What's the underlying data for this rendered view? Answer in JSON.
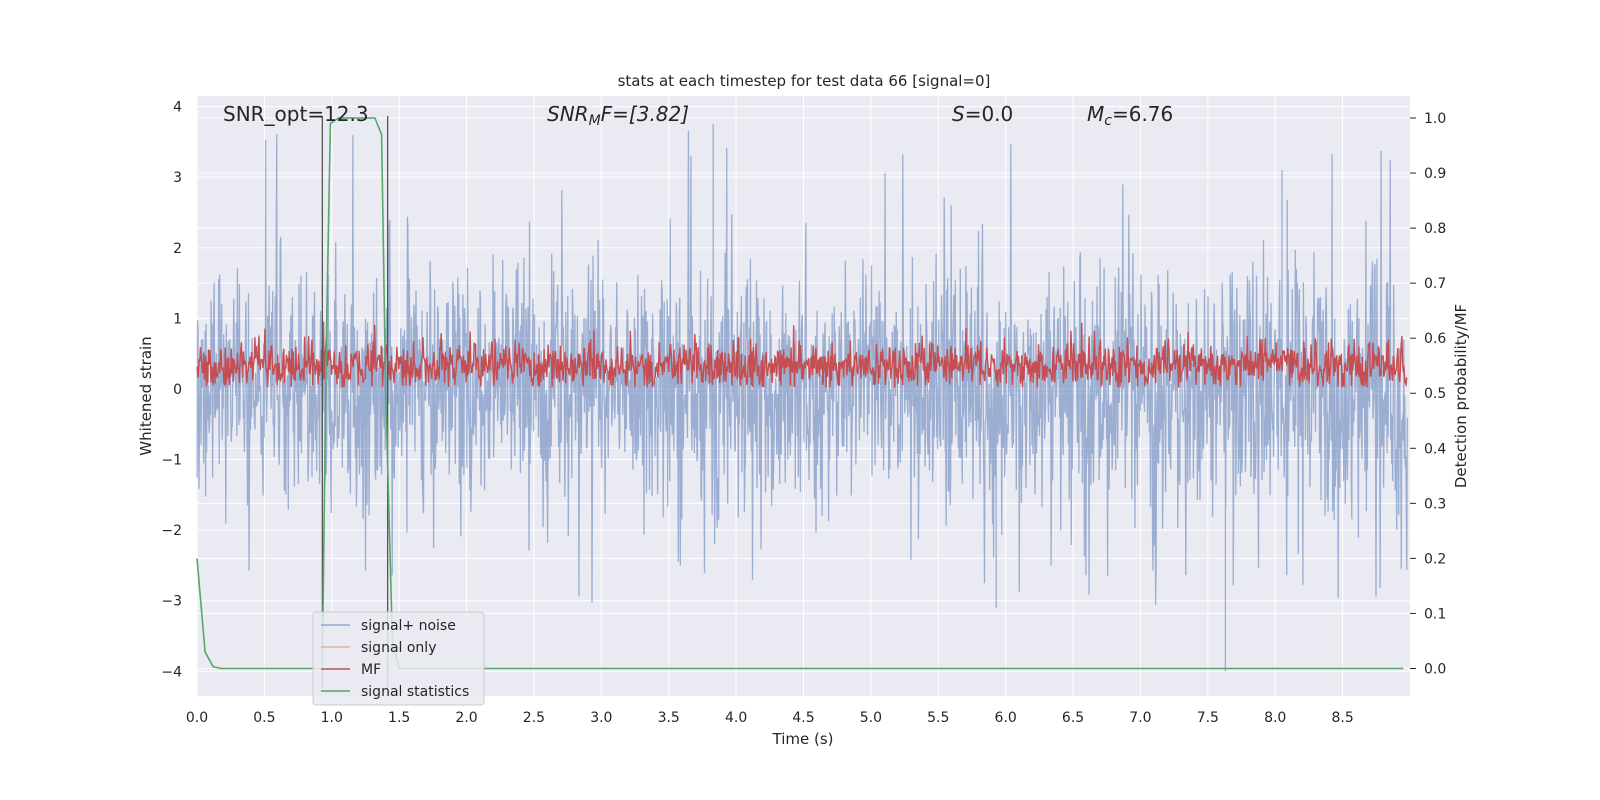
{
  "chart_data": {
    "type": "line",
    "title": "stats at each timestep for test data 66 [signal=0]",
    "xlabel": "Time (s)",
    "ylabel_left": "Whitened strain",
    "ylabel_right": "Detection probability/MF",
    "xlim": [
      0.0,
      9.0
    ],
    "ylim_left": [
      -4.35,
      4.15
    ],
    "ylim_right": [
      -0.05,
      1.04
    ],
    "xticks": [
      "0.0",
      "0.5",
      "1.0",
      "1.5",
      "2.0",
      "2.5",
      "3.0",
      "3.5",
      "4.0",
      "4.5",
      "5.0",
      "5.5",
      "6.0",
      "6.5",
      "7.0",
      "7.5",
      "8.0",
      "8.5"
    ],
    "yticks_left": [
      "4",
      "3",
      "2",
      "1",
      "0",
      "−1",
      "−2",
      "−3",
      "−4"
    ],
    "yticks_right": [
      "1.0",
      "0.9",
      "0.8",
      "0.7",
      "0.6",
      "0.5",
      "0.4",
      "0.3",
      "0.2",
      "0.1",
      "0.0"
    ],
    "grid": true,
    "legend_position": "lower-left",
    "annotations": {
      "snr_opt": "SNR_opt=12.3",
      "snr_mf_sym": "SNR",
      "snr_mf_sub": "M",
      "snr_mf_tail": "F=[3.82]",
      "s_sym": "S",
      "s_val": "=0.0",
      "mc_sym": "M",
      "mc_sub": "c",
      "mc_val": "=6.76"
    },
    "markers": {
      "signal_start": 0.93,
      "signal_end": 1.37
    },
    "noise_envelope": {
      "upper_typical": 2.3,
      "lower_typical": -2.2,
      "max_spike": 3.75,
      "min_spike": -4.0
    },
    "mf_band": {
      "low": 0.0,
      "high": 0.9
    },
    "series": [
      {
        "name": "signal+ noise",
        "color": "#4c72b0",
        "axis": "left"
      },
      {
        "name": "signal only",
        "color": "#dd8452",
        "axis": "left",
        "values": []
      },
      {
        "name": "MF",
        "color": "#c44e52",
        "axis": "left"
      },
      {
        "name": "signal statistics",
        "color": "#55a868",
        "axis": "right",
        "x": [
          0.0,
          0.06,
          0.12,
          0.18,
          0.3,
          0.5,
          0.7,
          0.9,
          0.93,
          0.96,
          0.99,
          1.05,
          1.15,
          1.25,
          1.32,
          1.37,
          1.4,
          1.45,
          1.5,
          2.0,
          5.0,
          8.95
        ],
        "values": [
          0.2,
          0.03,
          0.003,
          0.0,
          0.0,
          0.0,
          0.0,
          0.0,
          0.0,
          0.6,
          0.99,
          1.0,
          1.0,
          1.0,
          1.0,
          0.97,
          0.5,
          0.05,
          0.0,
          0.0,
          0.0,
          0.0
        ]
      }
    ]
  }
}
